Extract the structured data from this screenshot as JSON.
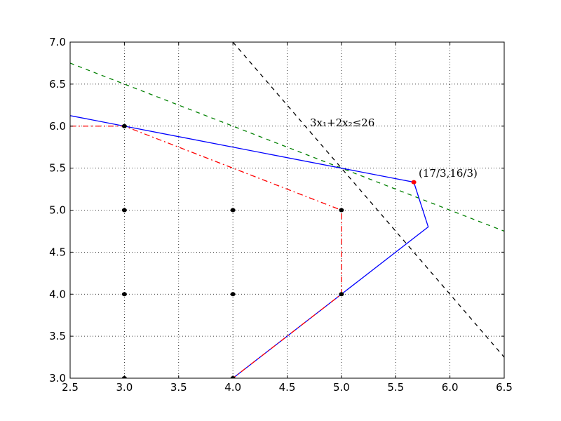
{
  "chart_data": {
    "type": "line",
    "xlim": [
      2.5,
      6.5
    ],
    "ylim": [
      3,
      7
    ],
    "xticks": [
      2.5,
      {
        "value": 3,
        "label": "3.0"
      },
      3.5,
      {
        "value": 4,
        "label": "4.0"
      },
      4.5,
      {
        "value": 5,
        "label": "5.0"
      },
      5.5,
      {
        "value": 6,
        "label": "6.0"
      },
      6.5
    ],
    "yticks": [
      {
        "value": 3,
        "label": "3.0"
      },
      3.5,
      {
        "value": 4,
        "label": "4.0"
      },
      4.5,
      {
        "value": 5,
        "label": "5.0"
      },
      5.5,
      {
        "value": 6,
        "label": "6.0"
      },
      6.5,
      {
        "value": 7,
        "label": "7.0"
      }
    ],
    "grid": true,
    "annotations": [
      "3x₁+2x₂≤26",
      "(17/3,16/3)"
    ],
    "series": [
      {
        "type": "line",
        "color": "#000000",
        "linestyle": "dashed",
        "x": [
          4,
          6.5
        ],
        "values": [
          7,
          3.25
        ]
      },
      {
        "type": "line",
        "color": "#008000",
        "linestyle": "dashed",
        "x": [
          2.5,
          6.5
        ],
        "values": [
          6.75,
          4.75
        ]
      },
      {
        "type": "line",
        "color": "#0000ff",
        "linestyle": "solid",
        "x": [
          2.5,
          5.667,
          5.8,
          5,
          4
        ],
        "values": [
          6.125,
          5.333,
          4.8,
          4,
          3
        ]
      },
      {
        "type": "line",
        "color": "#ff0000",
        "linestyle": "dashdot",
        "x": [
          2.5,
          3,
          5,
          5,
          4
        ],
        "values": [
          6,
          6,
          5,
          4,
          3
        ]
      },
      {
        "type": "scatter",
        "color": "#000000",
        "x": [
          3,
          3,
          4,
          5,
          3,
          4,
          5,
          3,
          4
        ],
        "values": [
          6,
          5,
          5,
          5,
          4,
          4,
          4,
          3,
          3
        ]
      },
      {
        "type": "scatter",
        "color": "#ff0000",
        "x": [
          5.667
        ],
        "values": [
          5.333
        ]
      }
    ]
  }
}
